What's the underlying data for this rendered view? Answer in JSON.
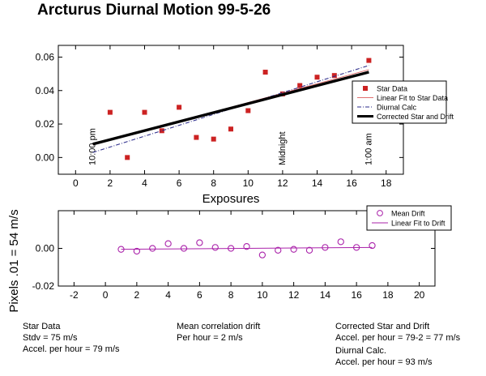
{
  "title": "Arcturus Diurnal Motion 99-5-26",
  "y_label": "Pixels  .01 = 54 m/s",
  "chart_data": [
    {
      "type": "scatter",
      "xlabel": "Exposures",
      "xlim": [
        -1,
        19
      ],
      "ylim": [
        -0.01,
        0.067
      ],
      "x_ticks": [
        "0",
        "2",
        "4",
        "6",
        "8",
        "10",
        "12",
        "14",
        "16",
        "18"
      ],
      "y_ticks": [
        "0.00",
        "0.02",
        "0.04",
        "0.06"
      ],
      "legend_position": "right",
      "series": [
        {
          "name": "Star Data",
          "style": "square-marker",
          "color": "#cc2222",
          "x": [
            2,
            3,
            4,
            5,
            6,
            7,
            8,
            9,
            10,
            11,
            12,
            13,
            14,
            15,
            17
          ],
          "y": [
            0.027,
            0.0,
            0.027,
            0.016,
            0.03,
            0.012,
            0.011,
            0.017,
            0.028,
            0.051,
            0.038,
            0.043,
            0.048,
            0.049,
            0.058
          ]
        },
        {
          "name": "Linear Fit to Star Data",
          "style": "thin-line",
          "color": "#e07070",
          "x": [
            1,
            17
          ],
          "y": [
            0.0075,
            0.0525
          ]
        },
        {
          "name": "Diurnal Calc",
          "style": "dash-dot-line",
          "color": "#2a2a8a",
          "x": [
            1,
            17
          ],
          "y": [
            0.003,
            0.055
          ]
        },
        {
          "name": "Corrected Star and Drift",
          "style": "thick-line",
          "color": "#000000",
          "x": [
            1,
            17
          ],
          "y": [
            0.008,
            0.051
          ]
        }
      ],
      "annotations": [
        {
          "text": "10:00 pm",
          "x": 1
        },
        {
          "text": "Midnight",
          "x": 12
        },
        {
          "text": "1:00 am",
          "x": 17
        }
      ]
    },
    {
      "type": "scatter",
      "xlim": [
        -3,
        21
      ],
      "ylim": [
        -0.02,
        0.02
      ],
      "x_ticks": [
        "-2",
        "0",
        "2",
        "4",
        "6",
        "8",
        "10",
        "12",
        "14",
        "16",
        "18",
        "20"
      ],
      "y_ticks": [
        "-0.02",
        "0.00"
      ],
      "legend_position": "top-right",
      "series": [
        {
          "name": "Mean Drift",
          "style": "circle-marker",
          "color": "#aa22aa",
          "x": [
            1,
            2,
            3,
            4,
            5,
            6,
            7,
            8,
            9,
            10,
            11,
            12,
            13,
            14,
            15,
            16,
            17
          ],
          "y": [
            -0.0005,
            -0.0015,
            0.0,
            0.0025,
            0.0,
            0.003,
            0.0005,
            0.0,
            0.001,
            -0.0035,
            -0.001,
            -0.0005,
            -0.001,
            0.0005,
            0.0035,
            0.0005,
            0.0015
          ]
        },
        {
          "name": "Linear Fit to Drift",
          "style": "thin-line",
          "color": "#aa22aa",
          "x": [
            1,
            17
          ],
          "y": [
            -0.0005,
            0.0005
          ]
        }
      ]
    }
  ],
  "notes": {
    "star_data": {
      "heading": "Star Data",
      "line1": "Stdv = 75 m/s",
      "line2": "Accel. per hour = 79 m/s"
    },
    "mean_drift": {
      "heading": "Mean correlation drift",
      "line1": "Per hour = 2 m/s"
    },
    "corrected": {
      "heading": "Corrected Star and Drift",
      "line1": "Accel. per hour = 79-2 = 77 m/s"
    },
    "diurnal": {
      "heading": "Diurnal Calc.",
      "line1": "Accel. per hour = 93 m/s"
    }
  }
}
